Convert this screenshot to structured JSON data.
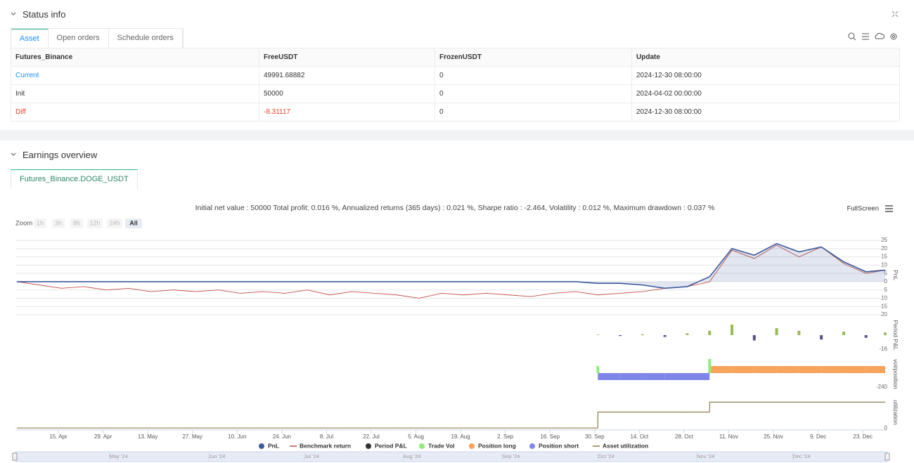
{
  "status": {
    "title": "Status info",
    "tabs": [
      "Asset",
      "Open orders",
      "Schedule orders"
    ],
    "table": {
      "header": [
        "Futures_Binance",
        "FreeUSDT",
        "FrozenUSDT",
        "Update"
      ],
      "rows": [
        [
          "Current",
          "49991.68882",
          "0",
          "2024-12-30 08:00:00"
        ],
        [
          "Init",
          "50000",
          "0",
          "2024-04-02 00:00:00"
        ],
        [
          "Diff",
          "-8.31117",
          "0",
          "2024-12-30 08:00:00"
        ]
      ]
    }
  },
  "earnings": {
    "title": "Earnings overview",
    "tab": "Futures_Binance.DOGE_USDT",
    "summary": "Initial net value : 50000 Total profit: 0.016 %, Annualized returns (365 days) : 0.021 %, Sharpe ratio : -2.464, Volatility : 0.012 %, Maximum drawdown : 0.037 %",
    "fullscreen": "FullScreen",
    "zoom": {
      "label": "Zoom",
      "buttons": [
        "1h",
        "3h",
        "8h",
        "12h",
        "24h",
        "All"
      ]
    },
    "chart_data": {
      "type": "line",
      "x": [
        "2024-04-02",
        "2024-04-09",
        "2024-04-16",
        "2024-04-23",
        "2024-04-30",
        "2024-05-07",
        "2024-05-14",
        "2024-05-21",
        "2024-05-28",
        "2024-06-04",
        "2024-06-11",
        "2024-06-18",
        "2024-06-25",
        "2024-07-02",
        "2024-07-09",
        "2024-07-16",
        "2024-07-23",
        "2024-07-30",
        "2024-08-06",
        "2024-08-13",
        "2024-08-20",
        "2024-08-27",
        "2024-09-03",
        "2024-09-10",
        "2024-09-17",
        "2024-09-24",
        "2024-10-01",
        "2024-10-08",
        "2024-10-15",
        "2024-10-22",
        "2024-10-29",
        "2024-11-05",
        "2024-11-12",
        "2024-11-19",
        "2024-11-26",
        "2024-12-03",
        "2024-12-10",
        "2024-12-17",
        "2024-12-24",
        "2024-12-30"
      ],
      "xlim": [
        "2024-04-02",
        "2024-12-30"
      ],
      "xticks": [
        {
          "value": "2024-04-15",
          "label": "15. Apr"
        },
        {
          "value": "2024-04-29",
          "label": "29. Apr"
        },
        {
          "value": "2024-05-13",
          "label": "13. May"
        },
        {
          "value": "2024-05-27",
          "label": "27. May"
        },
        {
          "value": "2024-06-10",
          "label": "10. Jun"
        },
        {
          "value": "2024-06-24",
          "label": "24. Jun"
        },
        {
          "value": "2024-07-08",
          "label": "8. Jul"
        },
        {
          "value": "2024-07-22",
          "label": "22. Jul"
        },
        {
          "value": "2024-08-05",
          "label": "5. Aug"
        },
        {
          "value": "2024-08-19",
          "label": "19. Aug"
        },
        {
          "value": "2024-09-02",
          "label": "2. Sep"
        },
        {
          "value": "2024-09-16",
          "label": "16. Sep"
        },
        {
          "value": "2024-09-30",
          "label": "30. Sep"
        },
        {
          "value": "2024-10-14",
          "label": "14. Oct"
        },
        {
          "value": "2024-10-28",
          "label": "28. Oct"
        },
        {
          "value": "2024-11-11",
          "label": "11. Nov"
        },
        {
          "value": "2024-11-25",
          "label": "25. Nov"
        },
        {
          "value": "2024-12-09",
          "label": "9. Dec"
        },
        {
          "value": "2024-12-23",
          "label": "23. Dec"
        }
      ],
      "navigator": {
        "xticks": [
          {
            "value": "2024-05-01",
            "label": "May '24"
          },
          {
            "value": "2024-06-01",
            "label": "Jun '24"
          },
          {
            "value": "2024-07-01",
            "label": "Jul '24"
          },
          {
            "value": "2024-08-01",
            "label": "Aug '24"
          },
          {
            "value": "2024-09-01",
            "label": "Sep '24"
          },
          {
            "value": "2024-10-01",
            "label": "Oct '24"
          },
          {
            "value": "2024-11-01",
            "label": "Nov '24"
          },
          {
            "value": "2024-12-01",
            "label": "Dec '24"
          }
        ]
      },
      "panels": [
        {
          "label": "PnL",
          "ylim": [
            -20,
            28
          ],
          "yticks": [
            25,
            20,
            15,
            10,
            5,
            0,
            -5,
            -10,
            -15,
            -20
          ],
          "grid": true
        },
        {
          "label": "Period P&L",
          "ylim": [
            -20,
            20
          ],
          "yticks": [
            -16
          ],
          "grid": false
        },
        {
          "label": "vol/position",
          "ylim": [
            -324,
            288
          ],
          "yticks": [
            -240
          ],
          "grid": false
        },
        {
          "label": "utilization",
          "ylim": [
            -6,
            100
          ],
          "yticks": [
            0
          ],
          "grid": false
        }
      ],
      "series": [
        {
          "name": "PnL",
          "type": "area",
          "panel": 0,
          "color": "#3d5a99",
          "values": [
            0,
            0,
            0,
            0,
            0,
            0,
            0,
            0,
            0,
            0,
            0,
            0,
            0,
            0,
            0,
            0,
            0,
            0,
            0,
            0,
            0,
            0,
            0,
            0,
            0,
            0,
            -1,
            -1,
            -2,
            -4,
            -3,
            3,
            20,
            16,
            23,
            18,
            21,
            12,
            6,
            7
          ]
        },
        {
          "name": "Benchmark return",
          "type": "line",
          "panel": 0,
          "color": "#c0504d",
          "values": [
            0,
            -2,
            -4,
            -3,
            -5,
            -4,
            -6,
            -5,
            -6,
            -5,
            -7,
            -6,
            -7,
            -5,
            -8,
            -6,
            -7,
            -8,
            -10,
            -7,
            -8,
            -7,
            -8,
            -9,
            -7,
            -6,
            -8,
            -7,
            -6,
            -4,
            -3,
            0,
            19,
            14,
            22,
            15,
            21,
            11,
            5,
            7
          ]
        },
        {
          "name": "Period P&L",
          "type": "bar",
          "panel": 1,
          "color": "#333333",
          "up_color": "#9bbb59",
          "down_color": "#5e4f8a",
          "values": [
            null,
            null,
            null,
            null,
            null,
            null,
            null,
            null,
            null,
            null,
            null,
            null,
            null,
            null,
            null,
            null,
            null,
            null,
            null,
            null,
            null,
            null,
            null,
            null,
            null,
            null,
            0.5,
            -1,
            1,
            -2,
            2,
            5,
            12,
            -6,
            8,
            5,
            -5,
            4,
            -3,
            3
          ]
        },
        {
          "name": "Trade Vol",
          "type": "bar",
          "panel": 2,
          "color": "#90ed7d",
          "values": [
            null,
            null,
            null,
            null,
            null,
            null,
            null,
            null,
            null,
            null,
            null,
            null,
            null,
            null,
            null,
            null,
            null,
            null,
            null,
            null,
            null,
            null,
            null,
            null,
            null,
            null,
            120,
            null,
            null,
            null,
            null,
            240,
            null,
            null,
            null,
            null,
            null,
            null,
            null,
            null
          ]
        },
        {
          "name": "Position long",
          "type": "step-area",
          "panel": 2,
          "color": "#f7a35c",
          "values": [
            null,
            null,
            null,
            null,
            null,
            null,
            null,
            null,
            null,
            null,
            null,
            null,
            null,
            null,
            null,
            null,
            null,
            null,
            null,
            null,
            null,
            null,
            null,
            null,
            null,
            null,
            null,
            null,
            null,
            null,
            null,
            120,
            120,
            120,
            120,
            120,
            120,
            120,
            120,
            120
          ]
        },
        {
          "name": "Position short",
          "type": "step-area",
          "panel": 2,
          "color": "#8085e9",
          "values": [
            null,
            null,
            null,
            null,
            null,
            null,
            null,
            null,
            null,
            null,
            null,
            null,
            null,
            null,
            null,
            null,
            null,
            null,
            null,
            null,
            null,
            null,
            null,
            null,
            null,
            null,
            -120,
            -120,
            -120,
            -120,
            -120,
            null,
            null,
            null,
            null,
            null,
            null,
            null,
            null,
            null
          ]
        },
        {
          "name": "Asset utilization",
          "type": "step-line",
          "panel": 3,
          "color": "#8d7b4d",
          "values": [
            0,
            0,
            0,
            0,
            0,
            0,
            0,
            0,
            0,
            0,
            0,
            0,
            0,
            0,
            0,
            0,
            0,
            0,
            0,
            0,
            0,
            0,
            0,
            0,
            0,
            0,
            48,
            48,
            48,
            48,
            48,
            78,
            78,
            78,
            78,
            78,
            78,
            78,
            78,
            78
          ]
        }
      ]
    }
  }
}
